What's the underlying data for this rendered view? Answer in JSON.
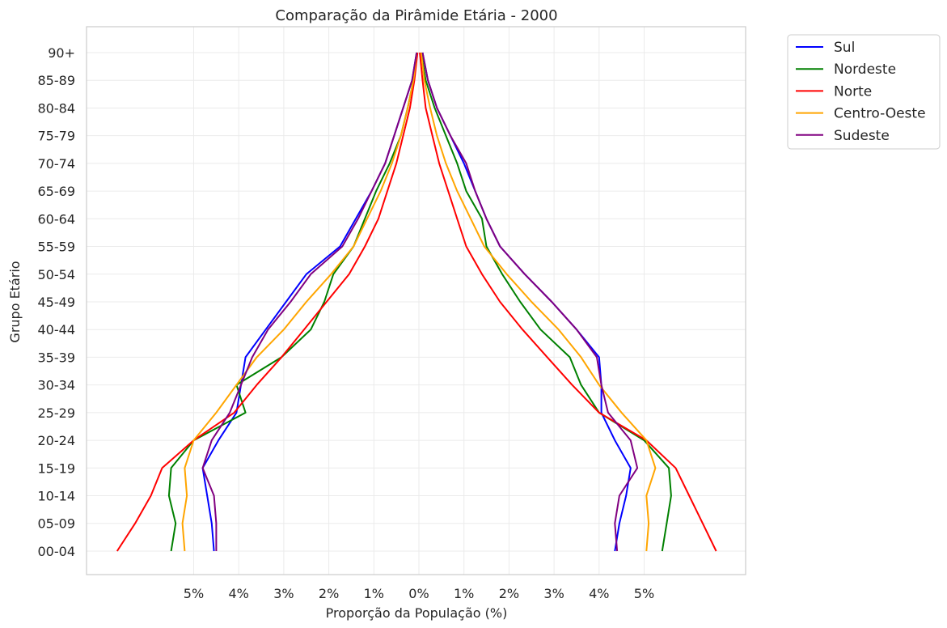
{
  "chart_data": {
    "type": "line",
    "title": "Comparação da Pirâmide Etária - 2000",
    "xlabel": "Proporção da População (%)",
    "ylabel": "Grupo Etário",
    "x_tick_values": [
      -5,
      -4,
      -3,
      -2,
      -1,
      0,
      1,
      2,
      3,
      4,
      5
    ],
    "x_tick_labels": [
      "5%",
      "4%",
      "3%",
      "2%",
      "1%",
      "0%",
      "1%",
      "2%",
      "3%",
      "4%",
      "5%"
    ],
    "xlim": [
      -7.4,
      7.3
    ],
    "grid": true,
    "legend_position": "outside top-right",
    "categories": [
      "00-04",
      "05-09",
      "10-14",
      "15-19",
      "20-24",
      "25-29",
      "30-34",
      "35-39",
      "40-44",
      "45-49",
      "50-54",
      "55-59",
      "60-64",
      "65-69",
      "70-74",
      "75-79",
      "80-84",
      "85-89",
      "90+"
    ],
    "series": [
      {
        "name": "Sul",
        "color": "#0000ff",
        "left": [
          -4.55,
          -4.6,
          -4.7,
          -4.8,
          -4.45,
          -4.05,
          -3.95,
          -3.85,
          -3.4,
          -2.95,
          -2.5,
          -1.75,
          -1.4,
          -1.05,
          -0.75,
          -0.55,
          -0.35,
          -0.15,
          -0.05
        ],
        "right": [
          4.35,
          4.45,
          4.6,
          4.7,
          4.35,
          4.05,
          4.05,
          4.0,
          3.5,
          2.95,
          2.35,
          1.8,
          1.5,
          1.25,
          1.0,
          0.7,
          0.4,
          0.2,
          0.08
        ]
      },
      {
        "name": "Nordeste",
        "color": "#008000",
        "left": [
          -5.5,
          -5.4,
          -5.55,
          -5.5,
          -5.0,
          -3.85,
          -4.05,
          -3.05,
          -2.4,
          -2.1,
          -1.9,
          -1.45,
          -1.2,
          -0.95,
          -0.65,
          -0.4,
          -0.25,
          -0.12,
          -0.05
        ],
        "right": [
          5.4,
          5.5,
          5.6,
          5.55,
          5.0,
          4.0,
          3.6,
          3.35,
          2.7,
          2.25,
          1.85,
          1.5,
          1.4,
          1.05,
          0.85,
          0.6,
          0.35,
          0.15,
          0.05
        ]
      },
      {
        "name": "Norte",
        "color": "#ff0000",
        "left": [
          -6.7,
          -6.3,
          -5.95,
          -5.7,
          -5.0,
          -4.1,
          -3.6,
          -3.05,
          -2.55,
          -2.05,
          -1.55,
          -1.2,
          -0.9,
          -0.7,
          -0.5,
          -0.35,
          -0.2,
          -0.1,
          -0.03
        ],
        "right": [
          6.6,
          6.3,
          6.0,
          5.7,
          5.05,
          4.0,
          3.4,
          2.85,
          2.3,
          1.8,
          1.4,
          1.05,
          0.85,
          0.65,
          0.45,
          0.3,
          0.15,
          0.08,
          0.02
        ]
      },
      {
        "name": "Centro-Oeste",
        "color": "#ffa500",
        "left": [
          -5.2,
          -5.25,
          -5.15,
          -5.2,
          -5.0,
          -4.5,
          -4.05,
          -3.6,
          -3.0,
          -2.5,
          -1.95,
          -1.45,
          -1.15,
          -0.85,
          -0.6,
          -0.4,
          -0.25,
          -0.12,
          -0.05
        ],
        "right": [
          5.05,
          5.1,
          5.05,
          5.25,
          5.05,
          4.5,
          4.0,
          3.6,
          3.1,
          2.5,
          1.95,
          1.45,
          1.15,
          0.85,
          0.6,
          0.4,
          0.25,
          0.12,
          0.05
        ]
      },
      {
        "name": "Sudeste",
        "color": "#800080",
        "left": [
          -4.5,
          -4.5,
          -4.55,
          -4.8,
          -4.6,
          -4.2,
          -3.95,
          -3.7,
          -3.35,
          -2.85,
          -2.4,
          -1.7,
          -1.35,
          -1.05,
          -0.75,
          -0.55,
          -0.35,
          -0.15,
          -0.05
        ],
        "right": [
          4.4,
          4.35,
          4.45,
          4.85,
          4.7,
          4.2,
          4.05,
          3.95,
          3.5,
          2.95,
          2.35,
          1.8,
          1.5,
          1.25,
          1.05,
          0.7,
          0.4,
          0.2,
          0.08
        ]
      }
    ]
  }
}
